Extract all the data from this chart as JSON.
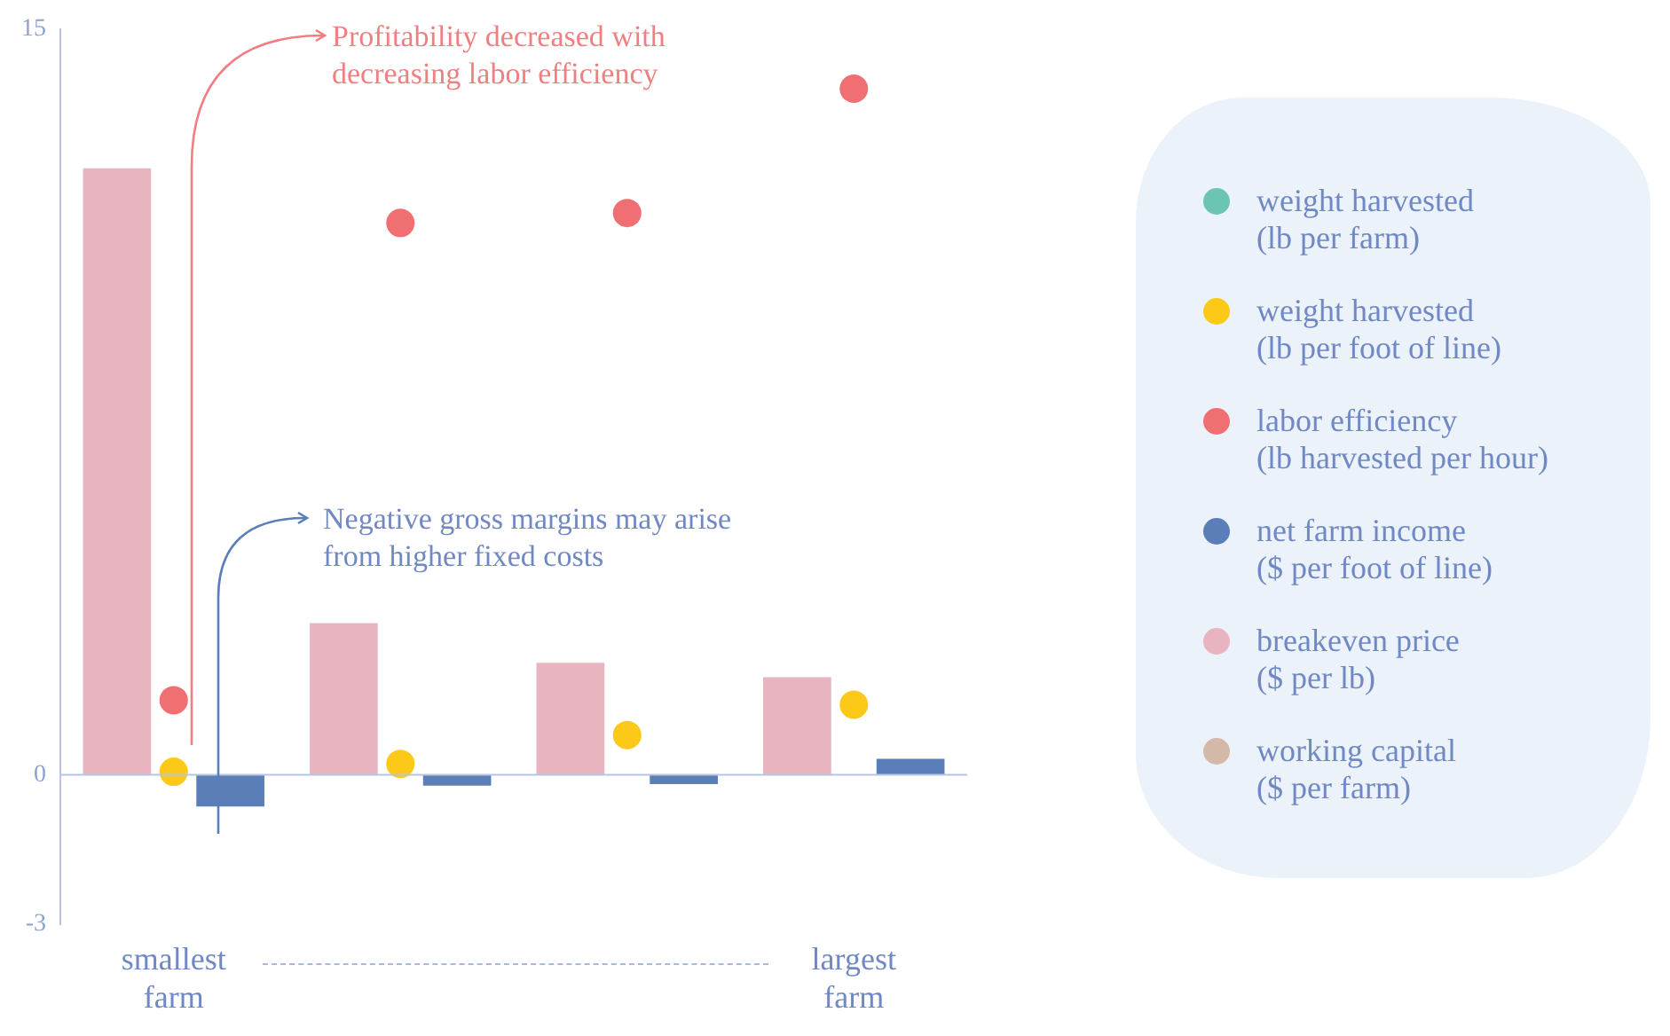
{
  "chart_data": {
    "type": "bar",
    "categories": [
      "smallest farm",
      null,
      null,
      "largest farm"
    ],
    "series": [
      {
        "name": "weight harvested (lb per farm)",
        "type": "scatter",
        "color": "#6cc5b0",
        "values": [
          null,
          null,
          null,
          null
        ]
      },
      {
        "name": "weight harvested (lb per foot of line)",
        "type": "scatter",
        "color": "#fcc918",
        "values": [
          0.06,
          0.22,
          0.8,
          1.41
        ]
      },
      {
        "name": "labor efficiency (lb harvested per hour)",
        "type": "scatter",
        "color": "#ef6f73",
        "values": [
          1.5,
          11.1,
          11.3,
          13.8
        ]
      },
      {
        "name": "net farm income ($ per foot of line)",
        "type": "bar",
        "color": "#5b7db8",
        "values": [
          -0.64,
          -0.22,
          -0.19,
          0.32
        ]
      },
      {
        "name": "breakeven price ($ per lb)",
        "type": "bar",
        "color": "#e8b4bf",
        "values": [
          12.2,
          3.05,
          2.25,
          1.96
        ]
      },
      {
        "name": "working capital ($ per farm)",
        "type": "scatter",
        "color": "#d4b8a8",
        "values": [
          null,
          null,
          null,
          null
        ]
      }
    ],
    "annotations": [
      "Profitability decreased with decreasing labor efficiency",
      "Negative gross margins may arise from higher fixed costs"
    ],
    "ref_lines": [
      {
        "axis": "y",
        "value": 0,
        "color": "#b7c5e2"
      }
    ],
    "ylim": [
      -3,
      15
    ],
    "yticks": [
      15,
      0,
      -3
    ],
    "grid": false,
    "legend": "right",
    "marker": "circle"
  }
}
